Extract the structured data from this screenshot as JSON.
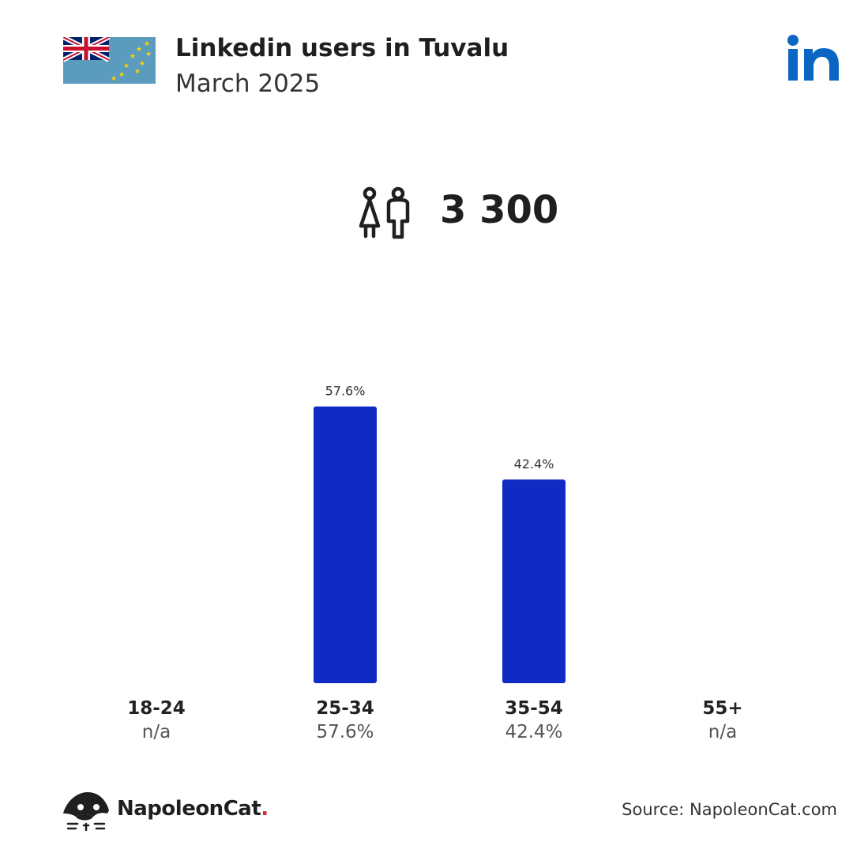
{
  "header": {
    "title": "Linkedin users in Tuvalu",
    "subtitle": "March 2025",
    "flag_icon": "tuvalu-flag-icon",
    "logo_icon": "linkedin-logo-icon"
  },
  "summary": {
    "total": "3 300",
    "icon": "users-icon"
  },
  "chart_data": {
    "type": "bar",
    "categories": [
      "18-24",
      "25-34",
      "35-54",
      "55+"
    ],
    "values": [
      null,
      57.6,
      42.4,
      null
    ],
    "value_labels": [
      "n/a",
      "57.6%",
      "42.4%",
      "n/a"
    ],
    "bar_labels": [
      "",
      "57.6%",
      "42.4%",
      ""
    ],
    "ylim": [
      0,
      60
    ],
    "grid": false,
    "bar_color": "#0f2bc3"
  },
  "footer": {
    "brand": "NapoleonCat",
    "brand_dot": ".",
    "brand_icon": "napoleoncat-logo-icon",
    "source": "Source: NapoleonCat.com"
  }
}
